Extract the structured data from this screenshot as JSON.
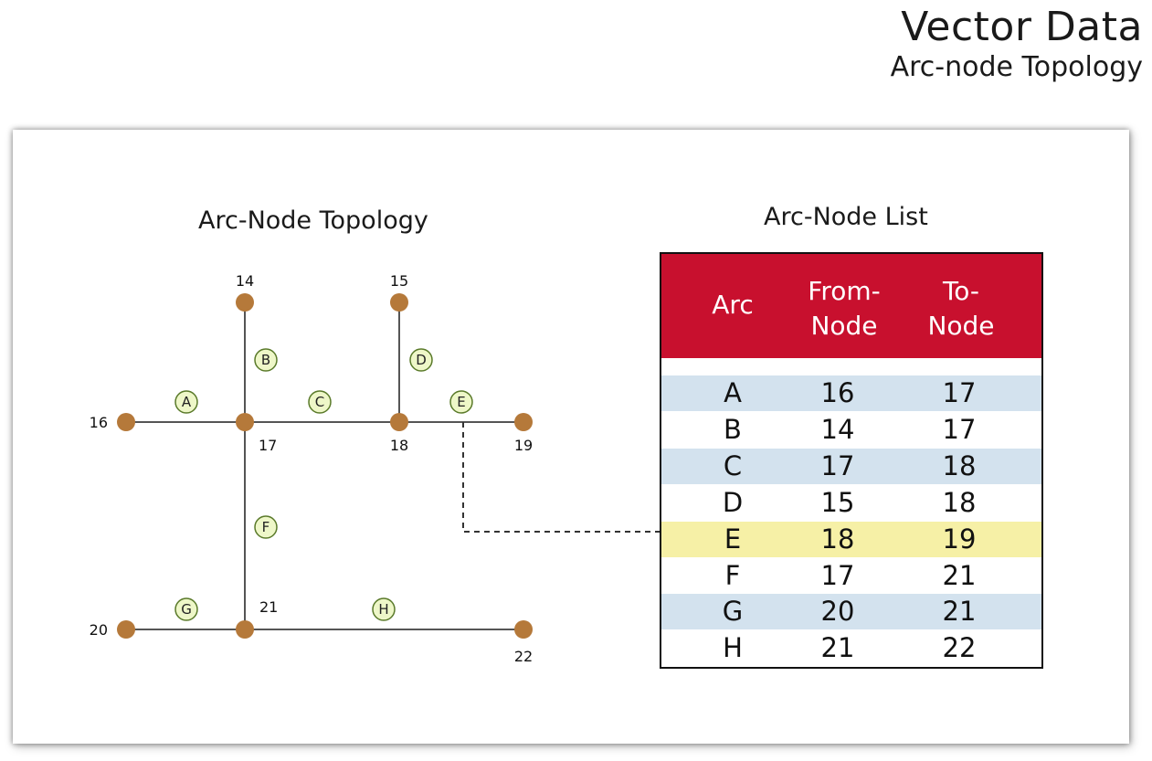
{
  "slide": {
    "title": "Vector Data",
    "subtitle": "Arc-node Topology"
  },
  "topology": {
    "title": "Arc-Node Topology",
    "nodes": [
      {
        "id": "14",
        "label": "14"
      },
      {
        "id": "15",
        "label": "15"
      },
      {
        "id": "16",
        "label": "16"
      },
      {
        "id": "17",
        "label": "17"
      },
      {
        "id": "18",
        "label": "18"
      },
      {
        "id": "19",
        "label": "19"
      },
      {
        "id": "20",
        "label": "20"
      },
      {
        "id": "21",
        "label": "21"
      },
      {
        "id": "22",
        "label": "22"
      }
    ],
    "arcs": [
      {
        "label": "A",
        "from": "16",
        "to": "17"
      },
      {
        "label": "B",
        "from": "14",
        "to": "17"
      },
      {
        "label": "C",
        "from": "17",
        "to": "18"
      },
      {
        "label": "D",
        "from": "15",
        "to": "18"
      },
      {
        "label": "E",
        "from": "18",
        "to": "19"
      },
      {
        "label": "F",
        "from": "17",
        "to": "21"
      },
      {
        "label": "G",
        "from": "20",
        "to": "21"
      },
      {
        "label": "H",
        "from": "21",
        "to": "22"
      }
    ],
    "colors": {
      "node": "#b5793a",
      "line": "#555555",
      "arc_label_fill": "#eef7c8",
      "arc_label_stroke": "#5a7a2a"
    }
  },
  "arc_list": {
    "title": "Arc-Node List",
    "headers": {
      "arc": "Arc",
      "from_line1": "From-",
      "from_line2": "Node",
      "to_line1": "To-",
      "to_line2": "Node"
    },
    "rows": [
      {
        "arc": "A",
        "from": "16",
        "to": "17"
      },
      {
        "arc": "B",
        "from": "14",
        "to": "17"
      },
      {
        "arc": "C",
        "from": "17",
        "to": "18"
      },
      {
        "arc": "D",
        "from": "15",
        "to": "18"
      },
      {
        "arc": "E",
        "from": "18",
        "to": "19"
      },
      {
        "arc": "F",
        "from": "17",
        "to": "21"
      },
      {
        "arc": "G",
        "from": "20",
        "to": "21"
      },
      {
        "arc": "H",
        "from": "21",
        "to": "22"
      }
    ],
    "highlighted_arc": "E",
    "colors": {
      "header_bg": "#c8102e",
      "stripe": "#d3e2ee",
      "highlight": "#f6f0a6"
    }
  }
}
